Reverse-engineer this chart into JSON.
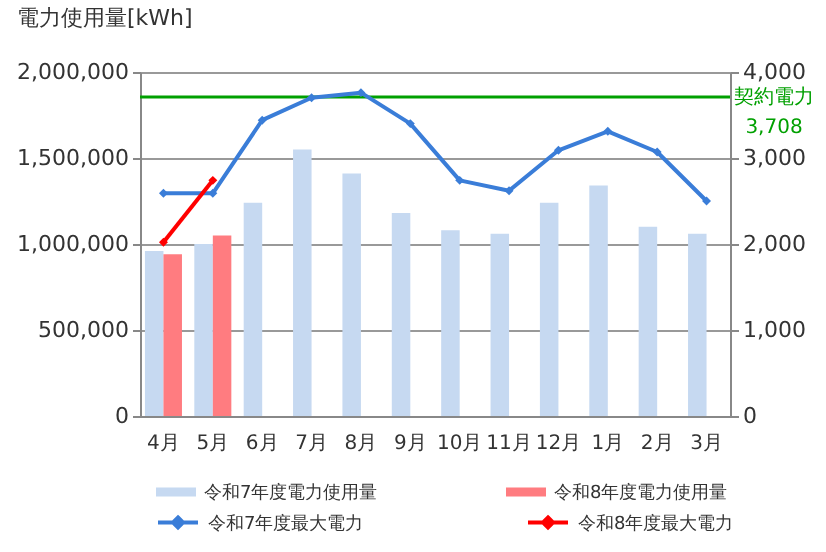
{
  "chart_data": {
    "type": "bar",
    "ylabel": "電力使用量[kWh]",
    "categories": [
      "4月",
      "5月",
      "6月",
      "7月",
      "8月",
      "9月",
      "10月",
      "11月",
      "12月",
      "1月",
      "2月",
      "3月"
    ],
    "series": [
      {
        "name": "令和7年度電力使用量",
        "color": "#c6d9f1",
        "values": [
          960000,
          1000000,
          1240000,
          1550000,
          1410000,
          1180000,
          1080000,
          1060000,
          1240000,
          1340000,
          1100000,
          1060000
        ]
      },
      {
        "name": "令和8年度電力使用量",
        "color": "#ff7c80",
        "values": [
          940000,
          1050000,
          null,
          null,
          null,
          null,
          null,
          null,
          null,
          null,
          null,
          null
        ]
      },
      {
        "name": "令和7年度最大電力",
        "type": "line",
        "axis": "y2",
        "color": "#3a7dd8",
        "values": [
          2590,
          2590,
          3440,
          3700,
          3760,
          3400,
          2740,
          2620,
          3090,
          3310,
          3070,
          2500
        ]
      },
      {
        "name": "令和8年度最大電力",
        "type": "line",
        "axis": "y2",
        "color": "#ff0000",
        "values": [
          2020,
          2740,
          null,
          null,
          null,
          null,
          null,
          null,
          null,
          null,
          null,
          null
        ]
      }
    ],
    "ylim": [
      0,
      2000000
    ],
    "yticks": [
      0,
      {
        "value": 500000,
        "label": "500,000"
      },
      {
        "value": 1000000,
        "label": "1,000,000"
      },
      {
        "value": 1500000,
        "label": "1,500,000"
      },
      {
        "value": 2000000,
        "label": "2,000,000"
      }
    ],
    "y2lim": [
      0,
      4000
    ],
    "y2ticks": [
      0,
      {
        "value": 1000,
        "label": "1,000"
      },
      {
        "value": 2000,
        "label": "2,000"
      },
      {
        "value": 3000,
        "label": "3,000"
      },
      {
        "value": 4000,
        "label": "4,000"
      }
    ],
    "ref_lines": [
      {
        "axis": "y2",
        "value": 3708,
        "label": "契約電力\n3,708",
        "color": "#00a000"
      }
    ],
    "grid": "y",
    "legend": "bottom",
    "marker": "diamond"
  }
}
